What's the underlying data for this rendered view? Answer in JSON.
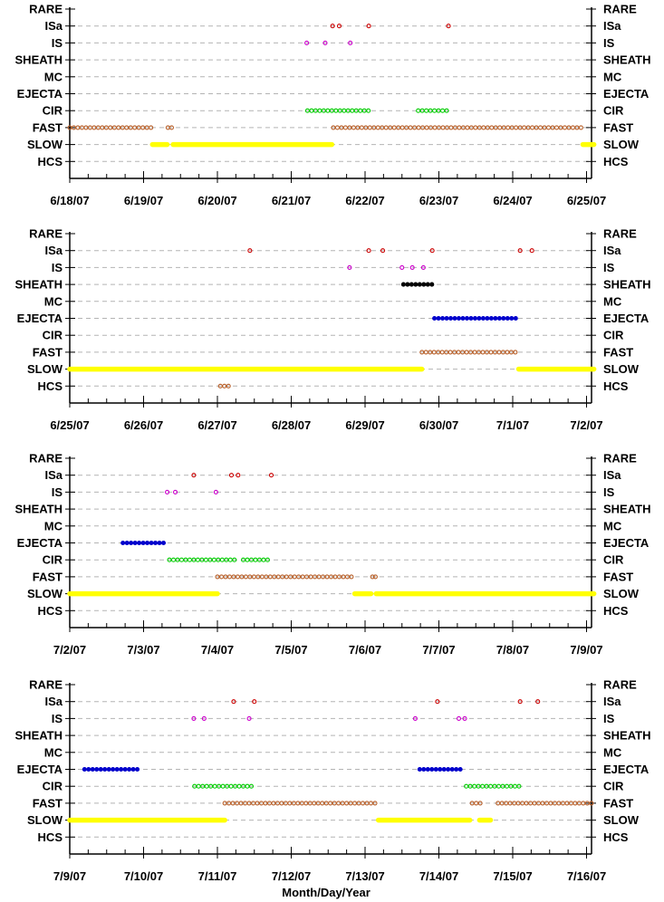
{
  "chart_data": {
    "type": "scatter",
    "xlabel": "Month/Day/Year",
    "categories": [
      "RARE",
      "ISa",
      "IS",
      "SHEATH",
      "MC",
      "EJECTA",
      "CIR",
      "FAST",
      "SLOW",
      "HCS"
    ],
    "colors": {
      "ISa": "#cc0000",
      "IS": "#cc00cc",
      "SHEATH": "#000000",
      "EJECTA": "#0000cc",
      "CIR": "#00cc00",
      "FAST": "#b8602a",
      "SLOW": "#ffff00",
      "HCS": "#b8602a"
    },
    "panels": [
      {
        "x_range": [
          "6/18/07",
          "6/25/07"
        ],
        "tick_labels": [
          "6/18/07",
          "6/19/07",
          "6/20/07",
          "6/21/07",
          "6/22/07",
          "6/23/07",
          "6/24/07",
          "6/25/07"
        ],
        "events": [
          {
            "class": "ISa",
            "at": [
              3.56,
              3.65,
              4.05,
              5.13
            ]
          },
          {
            "class": "IS",
            "at": [
              3.21,
              3.46,
              3.8
            ]
          },
          {
            "class": "CIR",
            "intervals": [
              [
                3.22,
                4.05
              ],
              [
                4.72,
                5.13
              ]
            ]
          },
          {
            "class": "FAST",
            "intervals": [
              [
                0.0,
                1.12
              ],
              [
                3.57,
                6.97
              ]
            ],
            "at": [
              1.33,
              1.38
            ]
          },
          {
            "class": "SLOW",
            "intervals": [
              [
                1.12,
                1.32
              ],
              [
                1.4,
                3.55
              ],
              [
                6.95,
                7.15
              ]
            ]
          }
        ]
      },
      {
        "x_range": [
          "6/25/07",
          "7/2/07"
        ],
        "tick_labels": [
          "6/25/07",
          "6/26/07",
          "6/27/07",
          "6/28/07",
          "6/29/07",
          "6/30/07",
          "7/1/07",
          "7/2/07"
        ],
        "events": [
          {
            "class": "ISa",
            "at": [
              2.44,
              4.05,
              4.24,
              4.91,
              6.1,
              6.26
            ]
          },
          {
            "class": "IS",
            "at": [
              3.79,
              4.5,
              4.64,
              4.79
            ]
          },
          {
            "class": "SHEATH",
            "intervals": [
              [
                4.52,
                4.92
              ]
            ]
          },
          {
            "class": "EJECTA",
            "intervals": [
              [
                4.94,
                6.08
              ]
            ]
          },
          {
            "class": "FAST",
            "intervals": [
              [
                4.77,
                6.08
              ]
            ]
          },
          {
            "class": "SLOW",
            "intervals": [
              [
                0.0,
                4.77
              ],
              [
                6.08,
                7.15
              ]
            ]
          },
          {
            "class": "HCS",
            "intervals": [
              [
                2.04,
                2.18
              ]
            ]
          }
        ]
      },
      {
        "x_range": [
          "7/2/07",
          "7/9/07"
        ],
        "tick_labels": [
          "7/2/07",
          "7/3/07",
          "7/4/07",
          "7/5/07",
          "7/6/07",
          "7/7/07",
          "7/8/07",
          "7/9/07"
        ],
        "events": [
          {
            "class": "ISa",
            "at": [
              1.68,
              2.19,
              2.28,
              2.73
            ]
          },
          {
            "class": "IS",
            "at": [
              1.32,
              1.43,
              1.98
            ]
          },
          {
            "class": "EJECTA",
            "intervals": [
              [
                0.72,
                1.29
              ]
            ]
          },
          {
            "class": "CIR",
            "intervals": [
              [
                1.35,
                2.26
              ],
              [
                2.35,
                2.72
              ]
            ]
          },
          {
            "class": "FAST",
            "intervals": [
              [
                2.0,
                3.86
              ]
            ],
            "at": [
              4.1,
              4.14
            ]
          },
          {
            "class": "SLOW",
            "intervals": [
              [
                0.0,
                2.0
              ],
              [
                3.86,
                4.08
              ],
              [
                4.15,
                7.15
              ]
            ]
          }
        ]
      },
      {
        "x_range": [
          "7/9/07",
          "7/16/07"
        ],
        "tick_labels": [
          "7/9/07",
          "7/10/07",
          "7/11/07",
          "7/12/07",
          "7/13/07",
          "7/14/07",
          "7/15/07",
          "7/16/07"
        ],
        "events": [
          {
            "class": "ISa",
            "at": [
              2.22,
              2.5,
              4.98,
              6.1,
              6.34
            ]
          },
          {
            "class": "IS",
            "at": [
              1.68,
              1.82,
              2.43,
              4.68,
              5.27,
              5.35
            ]
          },
          {
            "class": "EJECTA",
            "intervals": [
              [
                0.2,
                0.94
              ],
              [
                4.74,
                5.3
              ]
            ]
          },
          {
            "class": "CIR",
            "intervals": [
              [
                1.69,
                2.49
              ],
              [
                5.37,
                6.1
              ]
            ]
          },
          {
            "class": "FAST",
            "intervals": [
              [
                2.1,
                4.17
              ],
              [
                5.45,
                5.57
              ],
              [
                5.8,
                7.15
              ]
            ]
          },
          {
            "class": "SLOW",
            "intervals": [
              [
                0.0,
                2.1
              ],
              [
                4.18,
                5.42
              ],
              [
                5.55,
                5.7
              ]
            ]
          }
        ]
      }
    ]
  }
}
